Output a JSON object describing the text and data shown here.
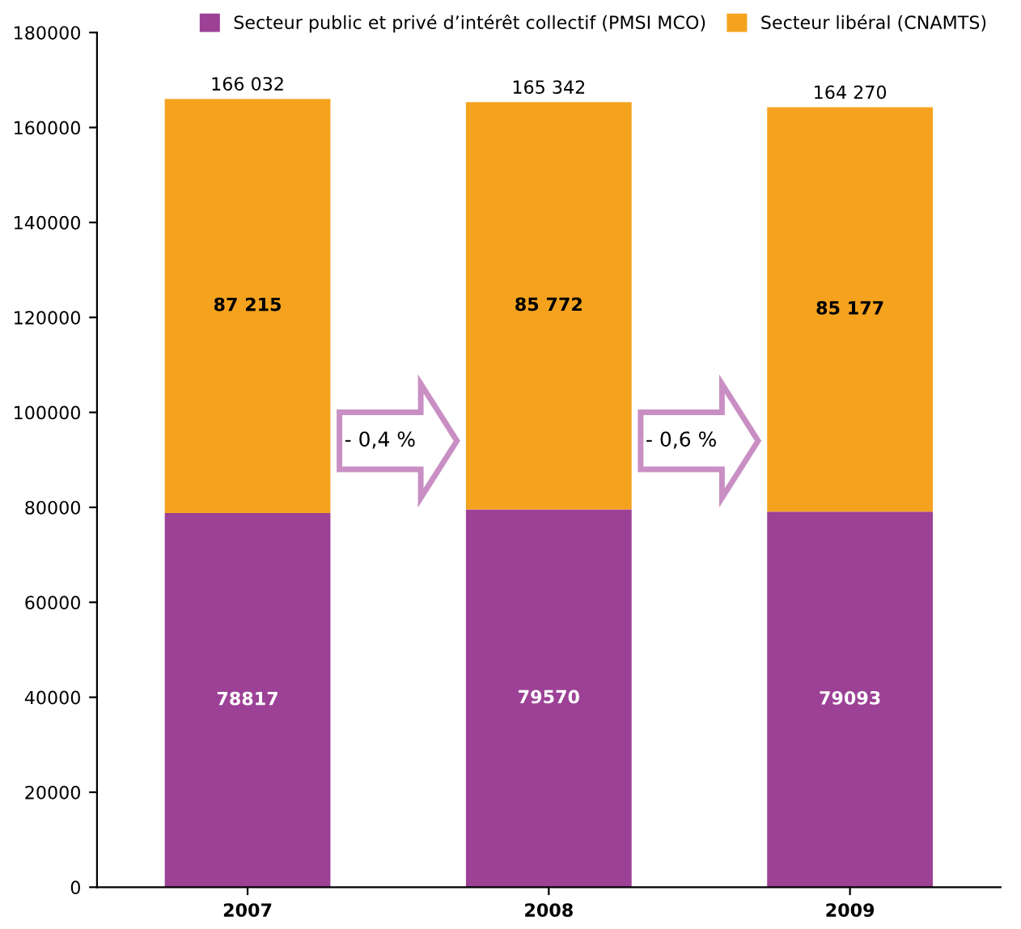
{
  "chart_data": {
    "type": "bar",
    "stacked": true,
    "categories": [
      "2007",
      "2008",
      "2009"
    ],
    "series": [
      {
        "name": "Secteur public et privé d’intérêt collectif (PMSI MCO)",
        "color": "#9c4196",
        "values": [
          78817,
          79570,
          79093
        ],
        "value_labels": [
          "78817",
          "79570",
          "79093"
        ]
      },
      {
        "name": "Secteur libéral (CNAMTS)",
        "color": "#f5a31f",
        "values": [
          87215,
          85772,
          85177
        ],
        "value_labels": [
          "87 215",
          "85 772",
          "85 177"
        ]
      }
    ],
    "totals": [
      "166 032",
      "165 342",
      "164 270"
    ],
    "annotations": [
      "- 0,4 %",
      "- 0,6 %"
    ],
    "ylim": [
      0,
      180000
    ],
    "yticks": [
      0,
      20000,
      40000,
      60000,
      80000,
      100000,
      120000,
      140000,
      160000,
      180000
    ],
    "grid": false,
    "legend": "top"
  }
}
